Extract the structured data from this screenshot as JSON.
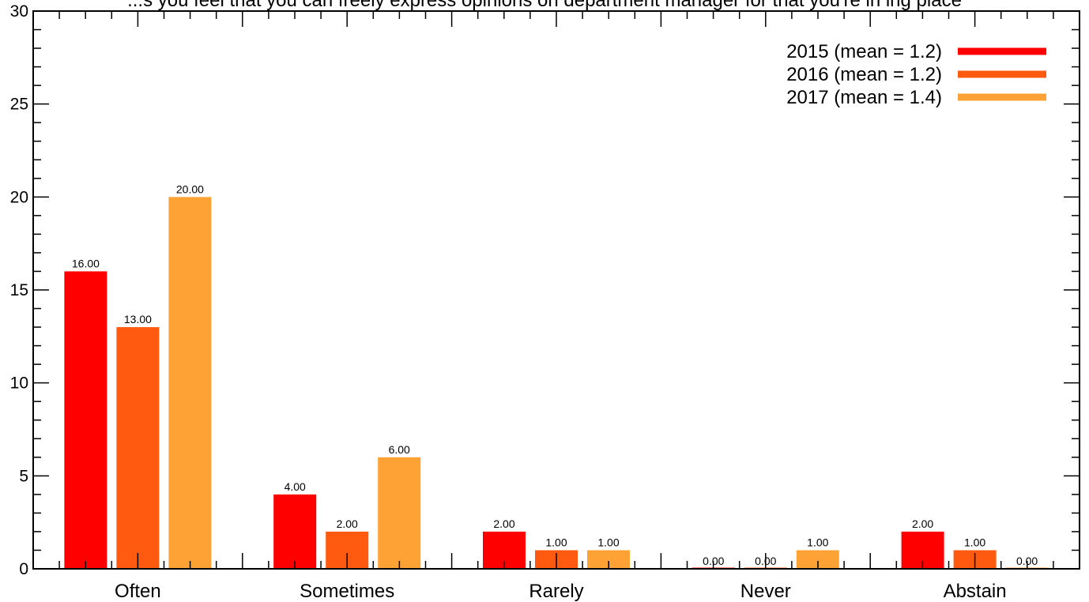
{
  "chart_data": {
    "type": "bar",
    "title": "...s you feel that you can freely express opinions on department manager for that you're in ing place",
    "xlabel": "",
    "ylabel": "",
    "categories": [
      "Often",
      "Sometimes",
      "Rarely",
      "Never",
      "Abstain"
    ],
    "series": [
      {
        "name": "2015 (mean = 1.2)",
        "color": "#ff0000",
        "values": [
          16,
          4,
          2,
          0,
          2
        ],
        "labels": [
          "16.00",
          "4.00",
          "2.00",
          "0.00",
          "2.00"
        ]
      },
      {
        "name": "2016 (mean = 1.2)",
        "color": "#ff5a0f",
        "values": [
          13,
          2,
          1,
          0,
          1
        ],
        "labels": [
          "13.00",
          "2.00",
          "1.00",
          "0.00",
          "1.00"
        ]
      },
      {
        "name": "2017 (mean = 1.4)",
        "color": "#ffa235",
        "values": [
          20,
          6,
          1,
          1,
          0
        ],
        "labels": [
          "20.00",
          "6.00",
          "1.00",
          "1.00",
          "0.00"
        ]
      }
    ],
    "ylim": [
      0,
      30
    ],
    "yticks": [
      0,
      5,
      10,
      15,
      20,
      25,
      30
    ],
    "ytick_labels": [
      "0",
      "5",
      "10",
      "15",
      "20",
      "25",
      "30"
    ],
    "grid": false,
    "legend_position": "top-right"
  }
}
